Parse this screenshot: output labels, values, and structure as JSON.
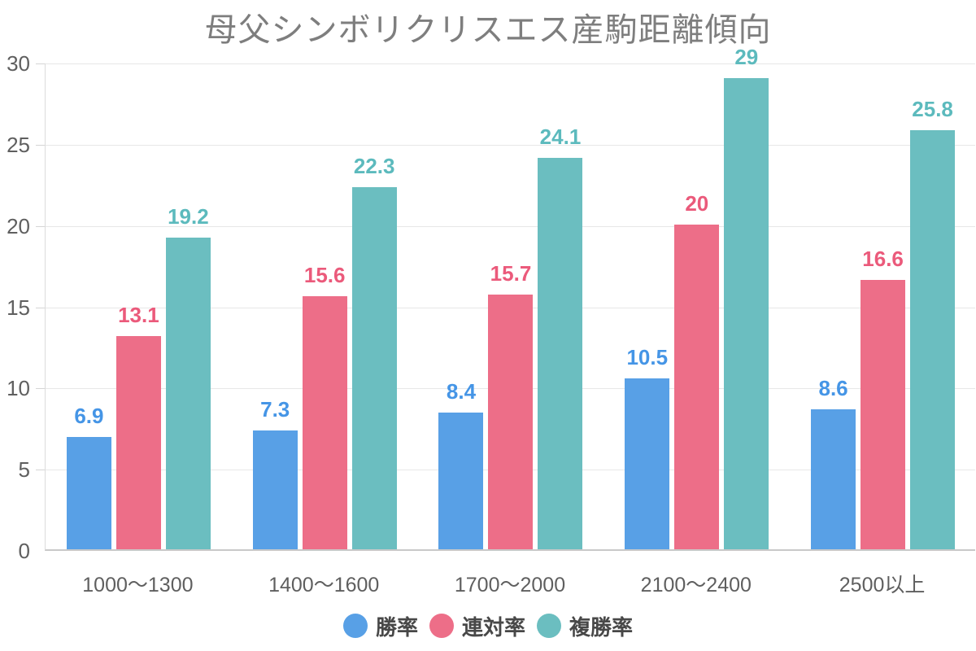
{
  "title": "母父シンボリクリスエス産駒距離傾向",
  "chart_data": {
    "type": "bar",
    "title": "母父シンボリクリスエス産駒距離傾向",
    "categories": [
      "1000〜1300",
      "1400〜1600",
      "1700〜2000",
      "2100〜2400",
      "2500以上"
    ],
    "series": [
      {
        "name": "勝率",
        "color": "#58A0E6",
        "label_color": "#4595E6",
        "values": [
          6.9,
          7.3,
          8.4,
          10.5,
          8.6
        ]
      },
      {
        "name": "連対率",
        "color": "#ED6E88",
        "label_color": "#EB5A7B",
        "values": [
          13.1,
          15.6,
          15.7,
          20,
          16.6
        ]
      },
      {
        "name": "複勝率",
        "color": "#6BBEC0",
        "label_color": "#5CBABD",
        "values": [
          19.2,
          22.3,
          24.1,
          29,
          25.8
        ]
      }
    ],
    "xlabel": "",
    "ylabel": "",
    "ylim": [
      0,
      30
    ],
    "yticks": [
      0,
      5,
      10,
      15,
      20,
      25,
      30
    ],
    "grid": "horizontal-only",
    "legend_position": "bottom"
  },
  "colors": {
    "background": "#ffffff",
    "title_text": "#7e7e7e",
    "axis_line": "#dcdcdc",
    "baseline": "#c9c9c9",
    "gridline": "#e7e7e7",
    "tick_text": "#5f5f5f",
    "legend_text": "#484848"
  }
}
